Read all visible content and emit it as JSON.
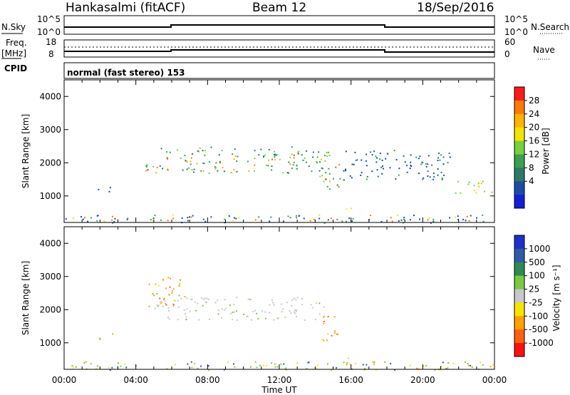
{
  "header": {
    "station": "Hankasalmi (fitACF)",
    "beam": "Beam 12",
    "date": "18/Sep/2016"
  },
  "top_panels": {
    "nsky_label": "N.Sky",
    "nsearch_label": "N.Search",
    "nsky_ticks": [
      "10^5",
      "10^0"
    ],
    "nsearch_ticks": [
      "10^5",
      "10^0"
    ],
    "freq_label": "Freq.",
    "freq_unit": "[MHz]",
    "freq_ticks": [
      "18",
      "8"
    ],
    "nave_label": "Nave",
    "nave_ticks": [
      "60",
      "0"
    ],
    "cpid_label": "CPID",
    "cpid_value": "normal (fast stereo) 153"
  },
  "chart_data": [
    {
      "type": "heatmap",
      "quantity": "Power",
      "ylabel": "Slant Range [km]",
      "ylim": [
        200,
        4500
      ],
      "yticks": [
        1000,
        2000,
        3000,
        4000
      ],
      "xlim": [
        0,
        24
      ],
      "colorbar_label": "Power [dB]",
      "colorbar_ticks": [
        "28",
        "24",
        "20",
        "16",
        "12",
        "8",
        "4"
      ],
      "colorbar_colors": [
        "#ff1a1a",
        "#ff7a00",
        "#ffb400",
        "#f4e400",
        "#77d040",
        "#3aa050",
        "#2c7a66",
        "#1c4da6",
        "#1020d8"
      ],
      "features": [
        {
          "time_start": 4.5,
          "time_end": 14.8,
          "range": [
            1700,
            2500
          ],
          "level": "high"
        },
        {
          "time_start": 14.2,
          "time_end": 15.4,
          "range": [
            1100,
            2000
          ],
          "level": "high"
        },
        {
          "time_start": 15.2,
          "time_end": 16.3,
          "range": [
            550,
            650
          ],
          "level": "mid"
        },
        {
          "time_start": 15.5,
          "time_end": 21.5,
          "range": [
            1500,
            2400
          ],
          "level": "low"
        },
        {
          "time_start": 21.8,
          "time_end": 24.0,
          "range": [
            1100,
            1500
          ],
          "level": "mid"
        },
        {
          "time_start": 1.8,
          "time_end": 2.8,
          "range": [
            1100,
            1300
          ],
          "level": "low"
        },
        {
          "time_start": 0.0,
          "time_end": 24.0,
          "range": [
            200,
            450
          ],
          "level": "mixed"
        }
      ]
    },
    {
      "type": "heatmap",
      "quantity": "Velocity",
      "ylabel": "Slant Range [km]",
      "ylim": [
        200,
        4500
      ],
      "yticks": [
        1000,
        2000,
        3000,
        4000
      ],
      "xlim": [
        0,
        24
      ],
      "xlabel": "Time UT",
      "xticks": [
        "00:00",
        "04:00",
        "08:00",
        "12:00",
        "16:00",
        "20:00",
        "00:00"
      ],
      "colorbar_label": "Velocity [m s⁻¹]",
      "colorbar_ticks": [
        "1000",
        "500",
        "100",
        "25",
        "-25",
        "-100",
        "-500",
        "-1000"
      ],
      "colorbar_colors": [
        "#2030c8",
        "#2f5aa8",
        "#2e8a55",
        "#7ac940",
        "#c8c8c8",
        "#f7e400",
        "#ffa000",
        "#ff6010",
        "#ff1010"
      ],
      "features": [
        {
          "time_start": 5.0,
          "time_end": 14.5,
          "range": [
            1700,
            2400
          ],
          "level": "ground-scatter"
        },
        {
          "time_start": 4.7,
          "time_end": 6.8,
          "range": [
            2100,
            3000
          ],
          "level": "negative"
        },
        {
          "time_start": 14.3,
          "time_end": 15.3,
          "range": [
            1000,
            1900
          ],
          "level": "negative"
        },
        {
          "time_start": 15.3,
          "time_end": 16.2,
          "range": [
            550,
            650
          ],
          "level": "ground-scatter"
        },
        {
          "time_start": 1.8,
          "time_end": 2.8,
          "range": [
            1100,
            1300
          ],
          "level": "negative"
        },
        {
          "time_start": 0.0,
          "time_end": 24.0,
          "range": [
            200,
            450
          ],
          "level": "mixed"
        }
      ]
    }
  ]
}
